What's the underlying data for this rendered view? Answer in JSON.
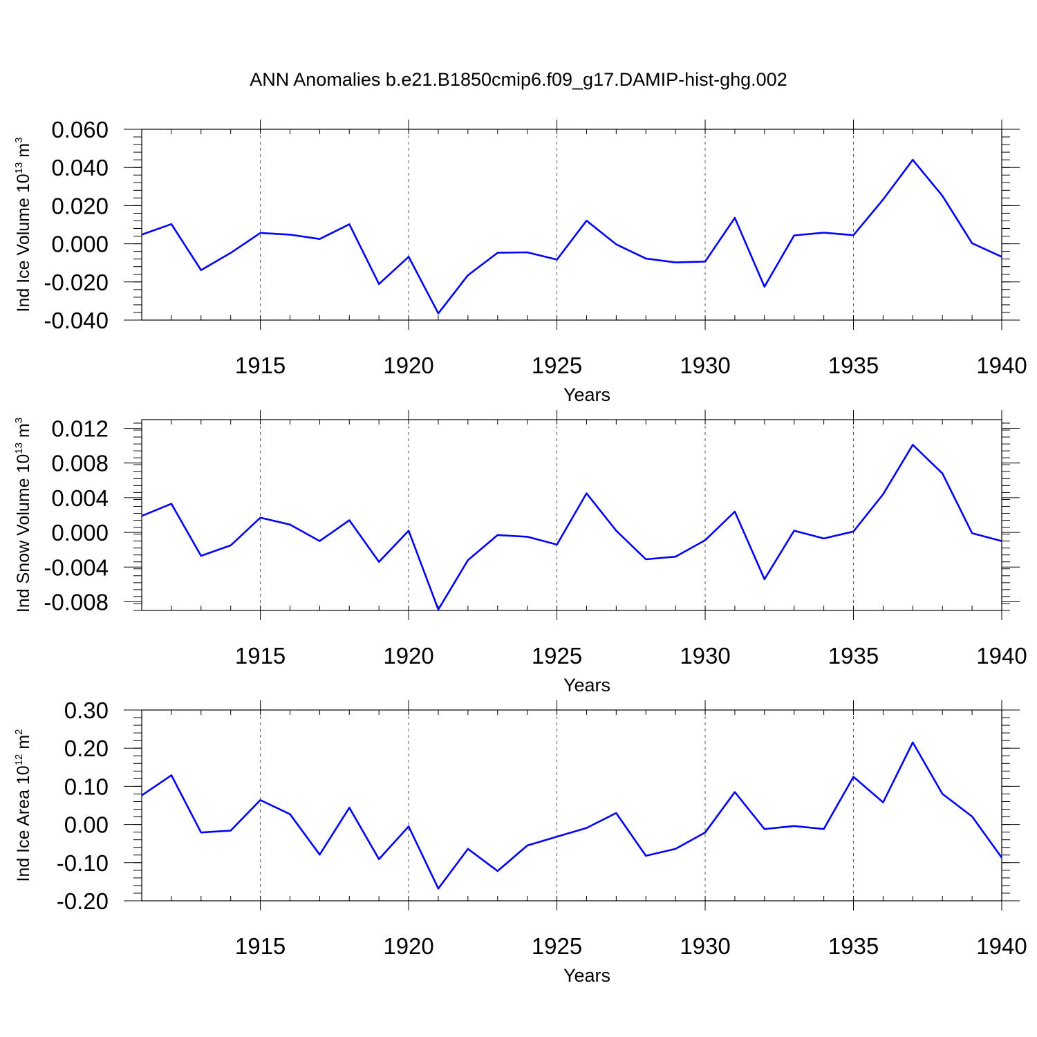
{
  "title": "ANN Anomalies b.e21.B1850cmip6.f09_g17.DAMIP-hist-ghg.002",
  "colors": {
    "line": "#0000ff",
    "axis": "#000000",
    "grid": "#555555"
  },
  "chart_data": [
    {
      "type": "line",
      "ylabel": "Ind Ice Volume 10",
      "ylabel_exp": "13",
      "ylabel_unit": " m",
      "ylabel_unit_exp": "3",
      "xlabel": "Years",
      "xlim": [
        1911,
        1940
      ],
      "ylim": [
        -0.04,
        0.06
      ],
      "x_ticks": [
        1915,
        1920,
        1925,
        1930,
        1935,
        1940
      ],
      "x_tick_labels": [
        "1915",
        "1920",
        "1925",
        "1930",
        "1935",
        "1940"
      ],
      "y_ticks": [
        -0.04,
        -0.02,
        0.0,
        0.02,
        0.04,
        0.06
      ],
      "y_tick_labels": [
        "-0.040",
        "-0.020",
        "0.000",
        "0.020",
        "0.040",
        "0.060"
      ],
      "grid": "vertical dashed at major x ticks",
      "x": [
        1911,
        1912,
        1913,
        1914,
        1915,
        1916,
        1917,
        1918,
        1919,
        1920,
        1921,
        1922,
        1923,
        1924,
        1925,
        1926,
        1927,
        1928,
        1929,
        1930,
        1931,
        1932,
        1933,
        1934,
        1935,
        1936,
        1937,
        1938,
        1939,
        1940
      ],
      "series": [
        {
          "values": [
            0.0048,
            0.0103,
            -0.0138,
            -0.0048,
            0.0057,
            0.0048,
            0.0025,
            0.0102,
            -0.0211,
            -0.0068,
            -0.0365,
            -0.0165,
            -0.0047,
            -0.0045,
            -0.0083,
            0.0121,
            -0.0003,
            -0.0077,
            -0.0098,
            -0.0093,
            0.0136,
            -0.0225,
            0.0044,
            0.0058,
            0.0045,
            0.0232,
            0.044,
            0.0251,
            0.0003,
            -0.0068
          ]
        }
      ]
    },
    {
      "type": "line",
      "ylabel": "Ind Snow Volume 10",
      "ylabel_exp": "13",
      "ylabel_unit": " m",
      "ylabel_unit_exp": "3",
      "xlabel": "Years",
      "xlim": [
        1911,
        1940
      ],
      "ylim": [
        -0.009,
        0.013
      ],
      "x_ticks": [
        1915,
        1920,
        1925,
        1930,
        1935,
        1940
      ],
      "x_tick_labels": [
        "1915",
        "1920",
        "1925",
        "1930",
        "1935",
        "1940"
      ],
      "y_ticks": [
        -0.008,
        -0.004,
        0.0,
        0.004,
        0.008,
        0.012
      ],
      "y_tick_labels": [
        "-0.008",
        "-0.004",
        "0.000",
        "0.004",
        "0.008",
        "0.012"
      ],
      "grid": "vertical dashed at major x ticks",
      "x": [
        1911,
        1912,
        1913,
        1914,
        1915,
        1916,
        1917,
        1918,
        1919,
        1920,
        1921,
        1922,
        1923,
        1924,
        1925,
        1926,
        1927,
        1928,
        1929,
        1930,
        1931,
        1932,
        1933,
        1934,
        1935,
        1936,
        1937,
        1938,
        1939,
        1940
      ],
      "series": [
        {
          "values": [
            0.0019,
            0.0033,
            -0.0027,
            -0.0015,
            0.0017,
            0.0009,
            -0.001,
            0.0014,
            -0.0034,
            0.0002,
            -0.0089,
            -0.0032,
            -0.0003,
            -0.0005,
            -0.0014,
            0.0045,
            0.0002,
            -0.0031,
            -0.0028,
            -0.0009,
            0.0024,
            -0.0054,
            0.0002,
            -0.0007,
            0.0001,
            0.0044,
            0.0101,
            0.0068,
            -0.0001,
            -0.001
          ]
        }
      ]
    },
    {
      "type": "line",
      "ylabel": "Ind Ice Area 10",
      "ylabel_exp": "12",
      "ylabel_unit": " m",
      "ylabel_unit_exp": "2",
      "xlabel": "Years",
      "xlim": [
        1911,
        1940
      ],
      "ylim": [
        -0.2,
        0.3
      ],
      "x_ticks": [
        1915,
        1920,
        1925,
        1930,
        1935,
        1940
      ],
      "x_tick_labels": [
        "1915",
        "1920",
        "1925",
        "1930",
        "1935",
        "1940"
      ],
      "y_ticks": [
        -0.2,
        -0.1,
        0.0,
        0.1,
        0.2,
        0.3
      ],
      "y_tick_labels": [
        "-0.20",
        "-0.10",
        "0.00",
        "0.10",
        "0.20",
        "0.30"
      ],
      "grid": "vertical dashed at major x ticks",
      "x": [
        1911,
        1912,
        1913,
        1914,
        1915,
        1916,
        1917,
        1918,
        1919,
        1920,
        1921,
        1922,
        1923,
        1924,
        1925,
        1926,
        1927,
        1928,
        1929,
        1930,
        1931,
        1932,
        1933,
        1934,
        1935,
        1936,
        1937,
        1938,
        1939,
        1940
      ],
      "series": [
        {
          "values": [
            0.076,
            0.129,
            -0.021,
            -0.016,
            0.064,
            0.027,
            -0.079,
            0.044,
            -0.091,
            -0.005,
            -0.168,
            -0.064,
            -0.122,
            -0.055,
            -0.032,
            -0.009,
            0.03,
            -0.082,
            -0.064,
            -0.021,
            0.085,
            -0.012,
            -0.004,
            -0.012,
            0.125,
            0.058,
            0.215,
            0.08,
            0.021,
            -0.087
          ]
        }
      ]
    }
  ]
}
